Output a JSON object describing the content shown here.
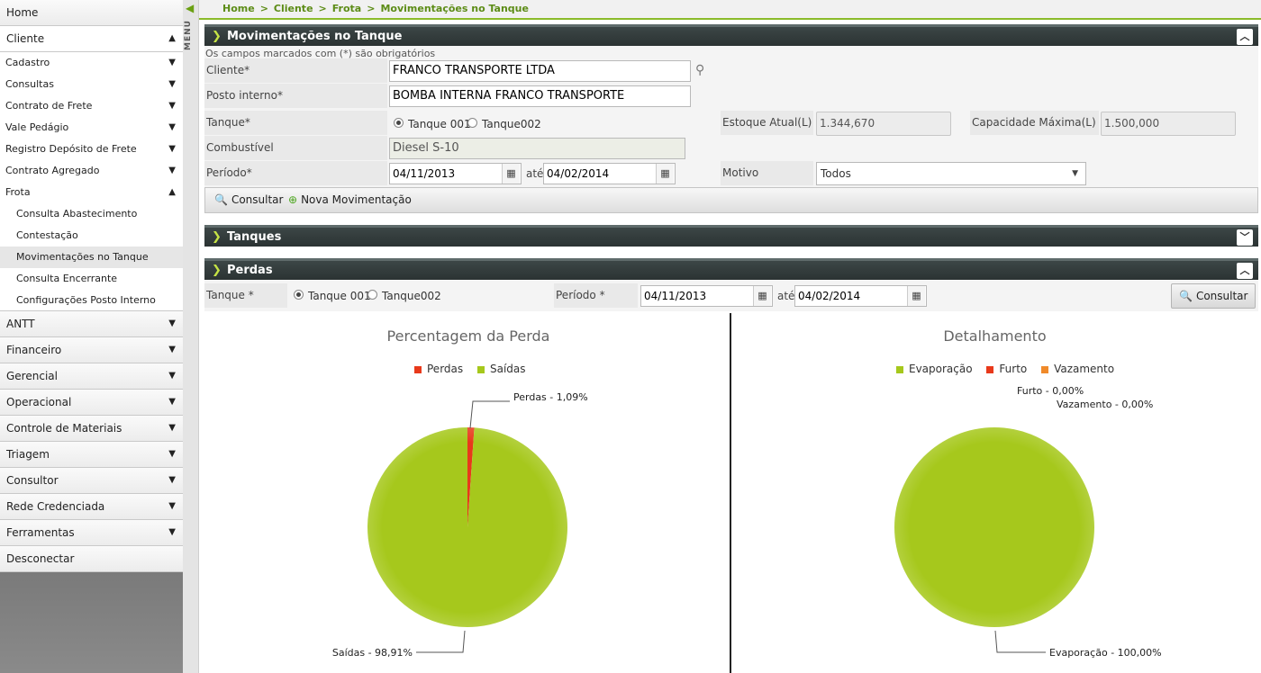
{
  "sidebar": {
    "home": "Home",
    "cliente": "Cliente",
    "cliente_items": [
      "Cadastro",
      "Consultas",
      "Contrato de Frete",
      "Vale Pedágio",
      "Registro Depósito de Frete",
      "Contrato Agregado"
    ],
    "frota": "Frota",
    "frota_items": [
      "Consulta Abastecimento",
      "Contestação",
      "Movimentações no Tanque",
      "Consulta Encerrante",
      "Configurações Posto Interno"
    ],
    "groups": [
      "ANTT",
      "Financeiro",
      "Gerencial",
      "Operacional",
      "Controle de Materiais",
      "Triagem",
      "Consultor",
      "Rede Credenciada",
      "Ferramentas"
    ],
    "logout": "Desconectar"
  },
  "menu_label": "MENU",
  "breadcrumb": [
    "Home",
    "Cliente",
    "Frota",
    "Movimentações no Tanque"
  ],
  "panel1": {
    "title": "Movimentações no Tanque",
    "hint": "Os campos marcados com (*) são obrigatórios",
    "cliente_label": "Cliente*",
    "cliente_value": "FRANCO TRANSPORTE LTDA",
    "posto_label": "Posto interno*",
    "posto_value": "BOMBA INTERNA FRANCO TRANSPORTE",
    "tanque_label": "Tanque*",
    "tanque_opts": [
      "Tanque 001",
      "Tanque002"
    ],
    "estoque_label": "Estoque Atual(L)",
    "estoque_value": "1.344,670",
    "capacidade_label": "Capacidade Máxima(L)",
    "capacidade_value": "1.500,000",
    "combustivel_label": "Combustível",
    "combustivel_value": "Diesel S-10",
    "periodo_label": "Período*",
    "periodo_from": "04/11/2013",
    "ate": "até",
    "periodo_to": "04/02/2014",
    "motivo_label": "Motivo",
    "motivo_value": "Todos",
    "btn_consultar": "Consultar",
    "btn_nova": "Nova Movimentação"
  },
  "panel2": {
    "title": "Tanques"
  },
  "panel3": {
    "title": "Perdas",
    "tanque_label": "Tanque *",
    "tanque_opts": [
      "Tanque 001",
      "Tanque002"
    ],
    "periodo_label": "Período *",
    "periodo_from": "04/11/2013",
    "ate": "até",
    "periodo_to": "04/02/2014",
    "btn_consultar": "Consultar"
  },
  "colors": {
    "green": "#a6c81c",
    "red": "#e8391b",
    "orange": "#f08a2a"
  },
  "chart_data": [
    {
      "type": "pie",
      "title": "Percentagem da Perda",
      "categories": [
        "Perdas",
        "Saídas"
      ],
      "values": [
        1.09,
        98.91
      ],
      "labels": [
        "Perdas - 1,09%",
        "Saídas - 98,91%"
      ],
      "colors": [
        "#e8391b",
        "#a6c81c"
      ],
      "legend": "top"
    },
    {
      "type": "pie",
      "title": "Detalhamento",
      "categories": [
        "Evaporação",
        "Furto",
        "Vazamento"
      ],
      "values": [
        100.0,
        0.0,
        0.0
      ],
      "labels": [
        "Evaporação - 100,00%",
        "Furto - 0,00%",
        "Vazamento - 0,00%"
      ],
      "colors": [
        "#a6c81c",
        "#e8391b",
        "#f08a2a"
      ],
      "legend": "top"
    }
  ]
}
